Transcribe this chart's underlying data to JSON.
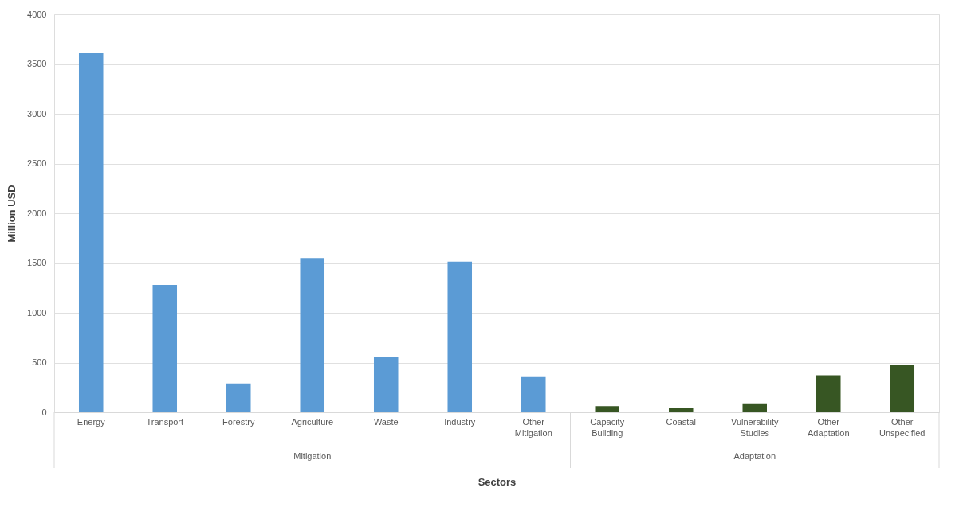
{
  "chart_data": {
    "type": "bar",
    "xlabel": "Sectors",
    "ylabel": "Million USD",
    "categories": [
      "Energy",
      "Transport",
      "Forestry",
      "Agriculture",
      "Waste",
      "Industry",
      "Other Mitigation",
      "Capacity Building",
      "Coastal",
      "Vulnerability Studies",
      "Other Adaptation",
      "Other Unspecified"
    ],
    "series": [
      {
        "color": "#5b9bd5",
        "values": [
          3610,
          1280,
          290,
          1550,
          560,
          1515,
          355,
          null,
          null,
          null,
          null,
          null
        ]
      },
      {
        "color": "#375623",
        "values": [
          null,
          null,
          null,
          null,
          null,
          null,
          null,
          62,
          47,
          90,
          372,
          472
        ]
      }
    ],
    "annotations": [
      "Mitigation",
      "Adaptation"
    ],
    "ylim": [
      0,
      4000
    ],
    "yticks": [
      0,
      500,
      1000,
      1500,
      2000,
      2500,
      3000,
      3500,
      4000
    ],
    "grid": "y",
    "legend": false
  }
}
